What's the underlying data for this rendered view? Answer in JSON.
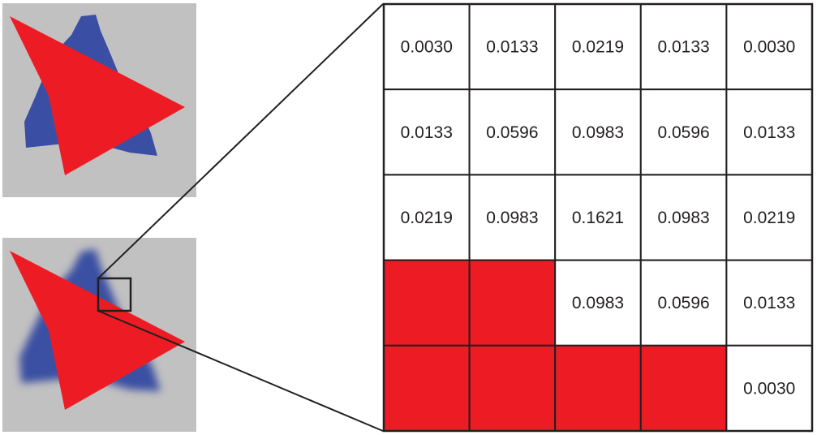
{
  "colors": {
    "background_panel": "#c2c1c1",
    "triangle_red": "#ed1c24",
    "shape_blue": "#3a4fa3",
    "grid_line": "#231f20",
    "cell_empty": "#ffffff"
  },
  "top_image": {
    "description_name": "original-rasterized-shapes"
  },
  "bottom_image": {
    "description_name": "blurred-rasterized-shapes"
  },
  "kernel_grid": {
    "rows": [
      [
        "0.0030",
        "0.0133",
        "0.0219",
        "0.0133",
        "0.0030"
      ],
      [
        "0.0133",
        "0.0596",
        "0.0983",
        "0.0596",
        "0.0133"
      ],
      [
        "0.0219",
        "0.0983",
        "0.1621",
        "0.0983",
        "0.0219"
      ],
      [
        null,
        null,
        "0.0983",
        "0.0596",
        "0.0133"
      ],
      [
        null,
        null,
        null,
        null,
        "0.0030"
      ]
    ]
  }
}
